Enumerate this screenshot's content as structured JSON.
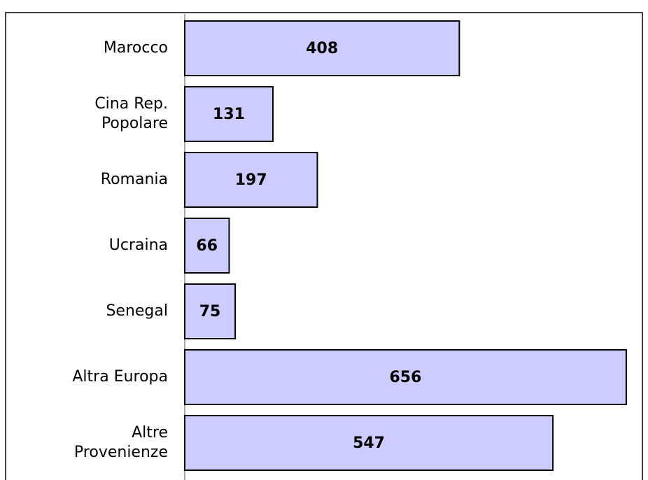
{
  "chart_data": {
    "type": "bar",
    "orientation": "horizontal",
    "categories": [
      "Marocco",
      "Cina Rep.\nPopolare",
      "Romania",
      "Ucraina",
      "Senegal",
      "Altra Europa",
      "Altre\nProvenienze"
    ],
    "values": [
      408,
      131,
      197,
      66,
      75,
      656,
      547
    ],
    "color": "#ccccff",
    "xlim": [
      0,
      680
    ]
  }
}
